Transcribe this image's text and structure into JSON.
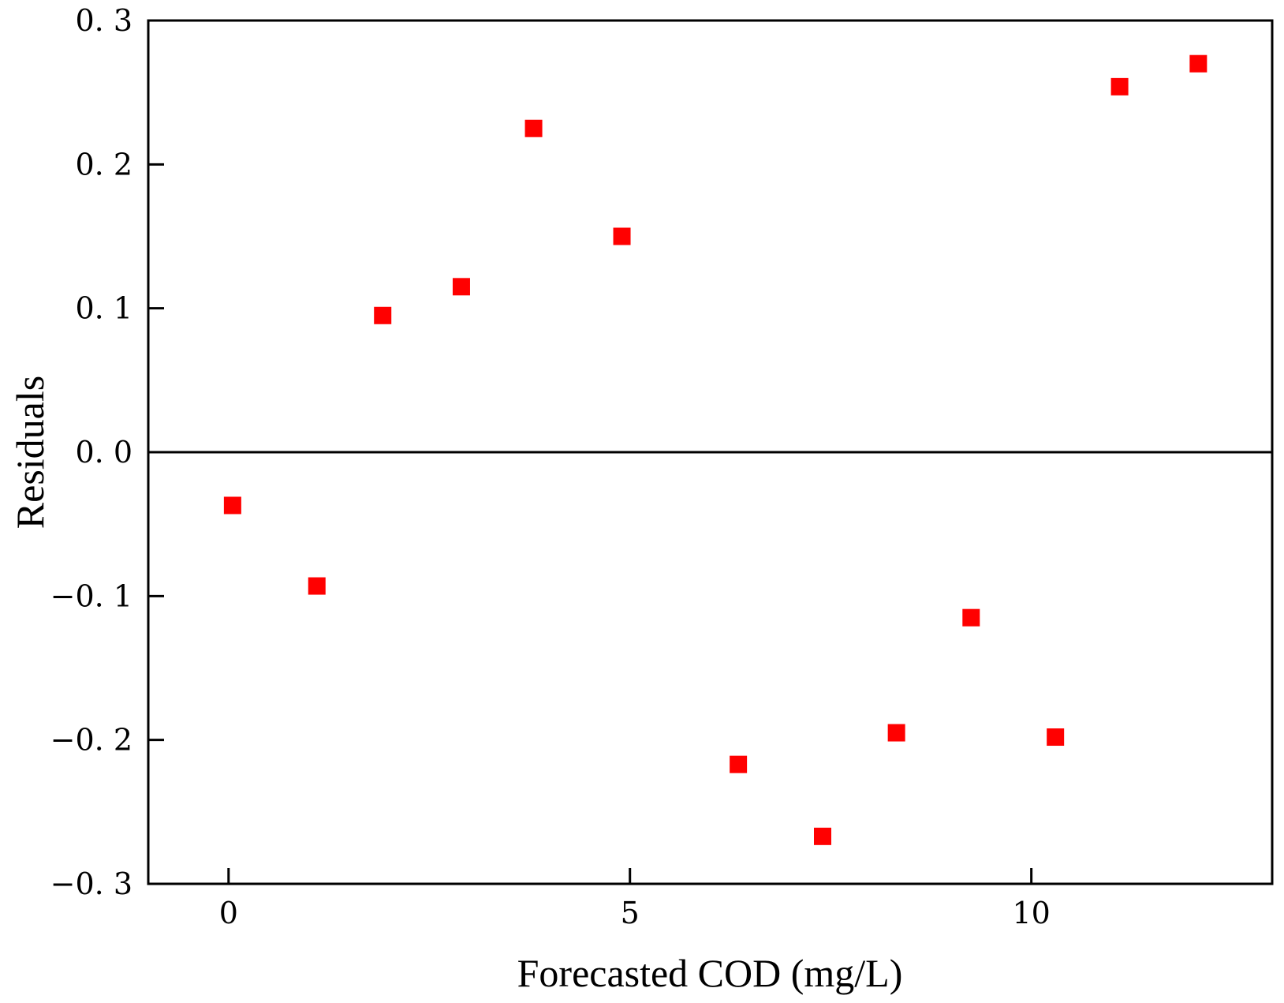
{
  "chart_data": {
    "type": "scatter",
    "title": "",
    "xlabel": "Forecasted COD (mg/L)",
    "ylabel": "Residuals",
    "xlim": [
      -1,
      13
    ],
    "ylim": [
      -0.3,
      0.3
    ],
    "x_ticks": [
      0,
      5,
      10
    ],
    "y_ticks": [
      0.3,
      0.2,
      0.1,
      0.0,
      -0.1,
      -0.2,
      -0.3
    ],
    "x_tick_labels": [
      "0",
      "5",
      "10"
    ],
    "y_tick_labels": [
      "0. 3",
      "0. 2",
      "0. 1",
      "0. 0",
      "−0. 1",
      "−0. 2",
      "−0. 3"
    ],
    "grid": false,
    "reference_line_y": 0.0,
    "marker": "square",
    "marker_color": "#ff0000",
    "series": [
      {
        "points": [
          {
            "x": 0.05,
            "y": -0.037
          },
          {
            "x": 1.1,
            "y": -0.093
          },
          {
            "x": 1.92,
            "y": 0.095
          },
          {
            "x": 2.9,
            "y": 0.115
          },
          {
            "x": 3.8,
            "y": 0.225
          },
          {
            "x": 4.9,
            "y": 0.15
          },
          {
            "x": 6.35,
            "y": -0.217
          },
          {
            "x": 7.4,
            "y": -0.267
          },
          {
            "x": 8.32,
            "y": -0.195
          },
          {
            "x": 9.25,
            "y": -0.115
          },
          {
            "x": 10.3,
            "y": -0.198
          },
          {
            "x": 11.1,
            "y": 0.254
          },
          {
            "x": 12.08,
            "y": 0.27
          }
        ]
      }
    ]
  }
}
